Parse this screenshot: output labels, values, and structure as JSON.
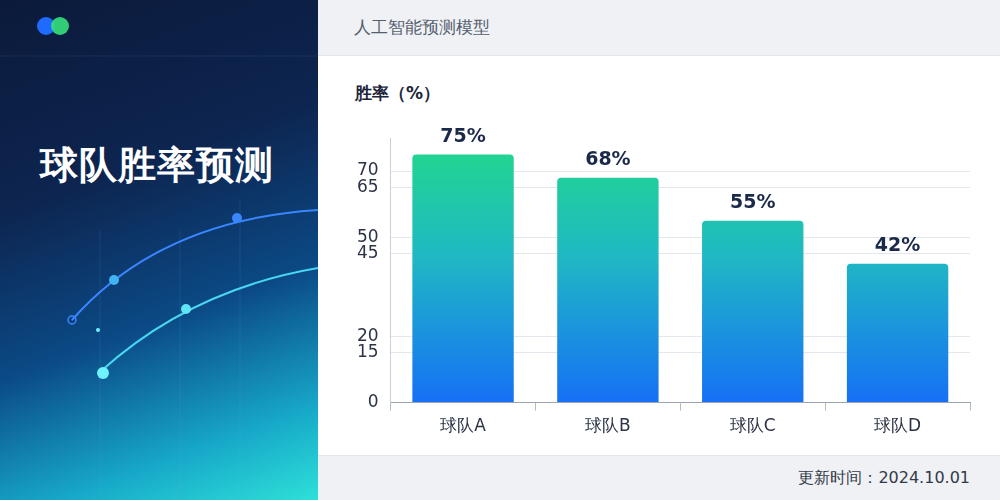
{
  "chart_data": {
    "type": "bar",
    "title": "球队胜率预测",
    "subtitle": "人工智能预测模型",
    "y_label": "胜率（%）",
    "annotations": [
      "更新时间：2024.10.01"
    ],
    "categories": [
      "球队A",
      "球队B",
      "球队C",
      "球队D"
    ],
    "values": [
      75,
      68,
      55,
      42
    ],
    "value_labels": [
      "75%",
      "68%",
      "55%",
      "42%"
    ],
    "color": "#22d98a",
    "ylim": [
      0,
      80
    ],
    "yticks": [
      0,
      15,
      20,
      45,
      50,
      65,
      70
    ],
    "grid": true,
    "data_labels": true
  }
}
